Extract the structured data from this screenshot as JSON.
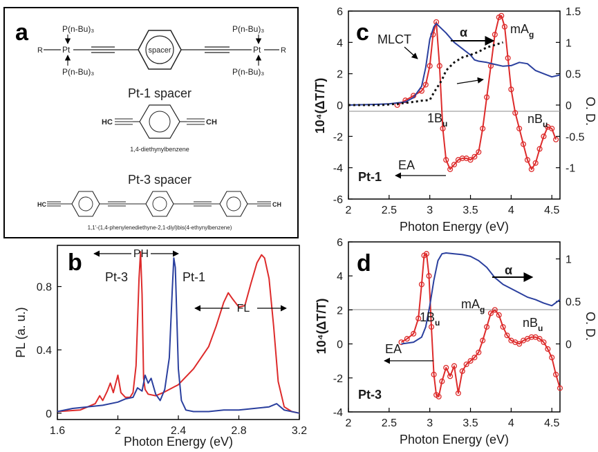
{
  "colors": {
    "red": "#dd2a2a",
    "blue": "#2a3f9e",
    "black": "#111111"
  },
  "panel_a": {
    "letter": "a",
    "ligand": "P(n-Bu)₃",
    "r_group": "R",
    "metal": "Pt",
    "spacer_word": "spacer",
    "pt1_heading": "Pt-1 spacer",
    "pt1_name": "1,4-diethynylbenzene",
    "pt3_heading": "Pt-3 spacer",
    "pt3_name": "1,1'-(1,4-phenylenediethyne-2,1-diyl)bis(4-ethynylbenzene)",
    "hc": "HC",
    "ch": "CH"
  },
  "chart_data": [
    {
      "panel": "b",
      "type": "line",
      "xlabel": "Photon Energy (eV)",
      "ylabel": "PL (a. u.)",
      "xlim": [
        1.6,
        3.2
      ],
      "ylim": [
        -0.04,
        1.06
      ],
      "xticks": [
        1.6,
        2.0,
        2.4,
        2.8,
        3.2
      ],
      "yticks": [
        0,
        0.4,
        0.8
      ],
      "series": [
        {
          "name": "Pt-3",
          "color": "#dd2a2a",
          "x": [
            1.6,
            1.75,
            1.85,
            1.88,
            1.9,
            1.93,
            1.95,
            1.97,
            2.0,
            2.02,
            2.05,
            2.08,
            2.1,
            2.12,
            2.14,
            2.15,
            2.16,
            2.17,
            2.18,
            2.2,
            2.25,
            2.3,
            2.4,
            2.5,
            2.6,
            2.65,
            2.7,
            2.73,
            2.76,
            2.8,
            2.84,
            2.88,
            2.92,
            2.95,
            2.97,
            3.0,
            3.03,
            3.06,
            3.1,
            3.15,
            3.2
          ],
          "y": [
            0.01,
            0.02,
            0.06,
            0.11,
            0.08,
            0.14,
            0.19,
            0.13,
            0.24,
            0.13,
            0.1,
            0.1,
            0.13,
            0.3,
            0.85,
            1.02,
            0.75,
            0.22,
            0.15,
            0.12,
            0.11,
            0.13,
            0.18,
            0.28,
            0.42,
            0.55,
            0.7,
            0.76,
            0.72,
            0.67,
            0.68,
            0.82,
            0.95,
            1.0,
            0.98,
            0.85,
            0.55,
            0.2,
            0.04,
            0.01,
            0.0
          ]
        },
        {
          "name": "Pt-1",
          "color": "#2a3f9e",
          "x": [
            1.6,
            1.7,
            1.8,
            1.9,
            2.0,
            2.05,
            2.1,
            2.13,
            2.16,
            2.18,
            2.2,
            2.22,
            2.25,
            2.28,
            2.31,
            2.34,
            2.36,
            2.37,
            2.38,
            2.39,
            2.4,
            2.42,
            2.45,
            2.5,
            2.6,
            2.7,
            2.8,
            2.9,
            3.0,
            3.05,
            3.1,
            3.2
          ],
          "y": [
            0.01,
            0.03,
            0.04,
            0.05,
            0.07,
            0.09,
            0.1,
            0.16,
            0.14,
            0.24,
            0.19,
            0.22,
            0.12,
            0.08,
            0.15,
            0.35,
            0.78,
            0.98,
            0.92,
            0.6,
            0.28,
            0.08,
            0.02,
            0.01,
            0.01,
            0.02,
            0.02,
            0.03,
            0.04,
            0.06,
            0.02,
            0.0
          ]
        }
      ],
      "annotations": [
        "Pt-3",
        "Pt-1",
        "PH",
        "FL"
      ]
    },
    {
      "panel": "c",
      "type": "line",
      "xlabel": "Photon Energy (eV)",
      "ylabel": "10⁴(ΔT/T)",
      "y2label": "O. D.",
      "xlim": [
        2.0,
        4.6
      ],
      "ylim": [
        -6,
        6
      ],
      "y2lim": [
        -1.5,
        1.5
      ],
      "xticks": [
        2,
        2.5,
        3,
        3.5,
        4,
        4.5
      ],
      "yticks": [
        -6,
        -4,
        -2,
        0,
        2,
        4,
        6
      ],
      "y2ticks": [
        -1,
        -0.5,
        0,
        0.5,
        1,
        1.5
      ],
      "y2ticklabels": [
        "-1",
        "-0.5",
        "0",
        "0.5",
        "1",
        "1.5"
      ],
      "series": [
        {
          "name": "ΔT/T",
          "axis": "left",
          "color": "#dd2a2a",
          "markers": true,
          "x": [
            2.6,
            2.7,
            2.8,
            2.9,
            2.95,
            3.0,
            3.04,
            3.08,
            3.12,
            3.16,
            3.2,
            3.25,
            3.3,
            3.35,
            3.4,
            3.45,
            3.5,
            3.55,
            3.6,
            3.65,
            3.7,
            3.75,
            3.8,
            3.85,
            3.88,
            3.92,
            3.96,
            4.0,
            4.05,
            4.1,
            4.15,
            4.2,
            4.25,
            4.3,
            4.35,
            4.4,
            4.45,
            4.5,
            4.55
          ],
          "y": [
            0.0,
            0.3,
            0.6,
            0.9,
            1.3,
            2.5,
            4.5,
            5.3,
            2.5,
            -1.5,
            -3.5,
            -4.1,
            -3.8,
            -3.5,
            -3.4,
            -3.4,
            -3.5,
            -3.3,
            -3.0,
            -1.5,
            0.5,
            2.5,
            4.5,
            5.6,
            5.7,
            5.0,
            3.0,
            1.0,
            -0.5,
            -1.5,
            -2.5,
            -3.5,
            -4.1,
            -3.7,
            -2.8,
            -2.0,
            -1.4,
            -1.5,
            -2.2
          ]
        },
        {
          "name": "α",
          "axis": "right",
          "color": "#2a3f9e",
          "x": [
            2.0,
            2.3,
            2.5,
            2.7,
            2.8,
            2.9,
            2.95,
            3.0,
            3.05,
            3.08,
            3.12,
            3.2,
            3.3,
            3.4,
            3.5,
            3.55,
            3.6,
            3.7,
            3.8,
            3.9,
            4.0,
            4.1,
            4.2,
            4.3,
            4.4,
            4.5,
            4.6
          ],
          "y": [
            0.0,
            0.01,
            0.02,
            0.05,
            0.12,
            0.3,
            0.6,
            1.05,
            1.25,
            1.3,
            1.25,
            1.15,
            1.0,
            0.9,
            0.8,
            0.72,
            0.7,
            0.68,
            0.65,
            0.62,
            0.63,
            0.68,
            0.66,
            0.55,
            0.5,
            0.45,
            0.48
          ]
        },
        {
          "name": "O. D. (dotted)",
          "axis": "right",
          "color": "#111111",
          "dashed": true,
          "x": [
            2.0,
            2.4,
            2.6,
            2.8,
            2.9,
            3.0,
            3.05,
            3.1,
            3.15,
            3.2,
            3.3,
            3.4,
            3.5,
            3.6,
            3.7,
            3.8,
            3.9
          ],
          "y": [
            0.0,
            0.0,
            0.02,
            0.05,
            0.07,
            0.08,
            0.2,
            0.3,
            0.4,
            0.55,
            0.68,
            0.76,
            0.8,
            0.85,
            0.92,
            0.96,
            1.0
          ]
        }
      ],
      "annotations": [
        "MLCT",
        "α",
        "mA",
        "g",
        "1B",
        "u",
        "nB",
        "u",
        "EA",
        "Pt-1"
      ]
    },
    {
      "panel": "d",
      "type": "line",
      "xlabel": "Photon Energy (eV)",
      "ylabel": "10⁴(ΔT/T)",
      "y2label": "O. D.",
      "xlim": [
        2.0,
        4.6
      ],
      "ylim": [
        -4,
        6
      ],
      "y2lim": [
        -0.8,
        1.2
      ],
      "xticks": [
        2,
        2.5,
        3,
        3.5,
        4,
        4.5
      ],
      "yticks": [
        -4,
        -2,
        0,
        2,
        4,
        6
      ],
      "y2ticks": [
        0,
        0.5,
        1
      ],
      "y2ticklabels": [
        "0",
        "0.5",
        "1"
      ],
      "series": [
        {
          "name": "ΔT/T",
          "axis": "left",
          "color": "#dd2a2a",
          "markers": true,
          "x": [
            2.65,
            2.72,
            2.8,
            2.86,
            2.9,
            2.93,
            2.96,
            2.99,
            3.02,
            3.05,
            3.08,
            3.11,
            3.15,
            3.2,
            3.25,
            3.3,
            3.35,
            3.4,
            3.45,
            3.5,
            3.55,
            3.6,
            3.65,
            3.7,
            3.75,
            3.8,
            3.85,
            3.9,
            3.95,
            4.0,
            4.05,
            4.1,
            4.15,
            4.2,
            4.25,
            4.3,
            4.35,
            4.4,
            4.45,
            4.5,
            4.55,
            4.6
          ],
          "y": [
            0.1,
            0.3,
            0.6,
            1.5,
            3.5,
            5.2,
            5.3,
            4.0,
            1.0,
            -1.8,
            -3.0,
            -3.1,
            -2.2,
            -1.4,
            -1.9,
            -1.3,
            -2.9,
            -1.6,
            -1.2,
            -1.0,
            -0.8,
            -0.5,
            0.2,
            1.0,
            1.8,
            2.0,
            1.7,
            1.0,
            0.5,
            0.2,
            0.1,
            0.0,
            0.2,
            0.3,
            0.4,
            0.4,
            0.3,
            0.1,
            -0.3,
            -0.8,
            -1.8,
            -2.6
          ]
        },
        {
          "name": "α",
          "axis": "right",
          "color": "#2a3f9e",
          "x": [
            2.65,
            2.8,
            2.9,
            2.95,
            3.0,
            3.05,
            3.1,
            3.15,
            3.2,
            3.3,
            3.4,
            3.5,
            3.6,
            3.7,
            3.8,
            3.9,
            4.0,
            4.1,
            4.2,
            4.3,
            4.4,
            4.5,
            4.6
          ],
          "y": [
            0.0,
            0.02,
            0.08,
            0.2,
            0.45,
            0.75,
            0.98,
            1.06,
            1.07,
            1.06,
            1.05,
            1.03,
            0.98,
            0.9,
            0.78,
            0.7,
            0.65,
            0.6,
            0.55,
            0.52,
            0.48,
            0.45,
            0.52
          ]
        }
      ],
      "annotations": [
        "α",
        "mA",
        "g",
        "1B",
        "u",
        "nB",
        "u",
        "EA",
        "Pt-3"
      ]
    }
  ]
}
